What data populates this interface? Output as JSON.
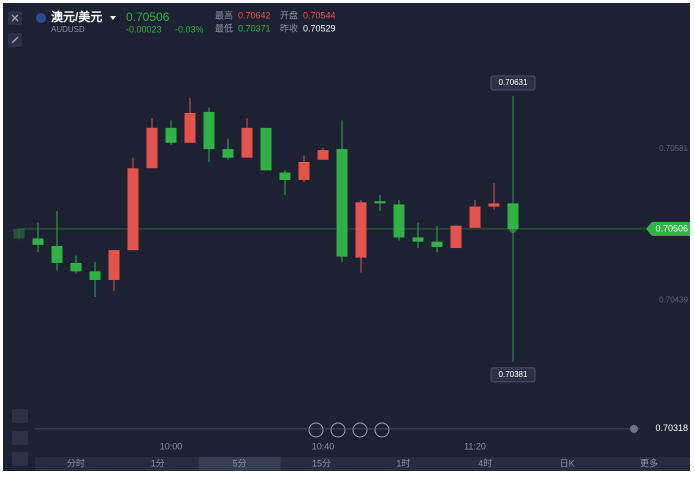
{
  "header": {
    "pair": "澳元/美元",
    "symbol": "AUDUSD",
    "price": "0.70506",
    "change": "-0.00023",
    "change_pct": "-0.03%",
    "stats": [
      {
        "label": "最高",
        "value": "0.70642"
      },
      {
        "label": "开盘",
        "value": "0.70544"
      },
      {
        "label": "最低",
        "value": "0.70371"
      },
      {
        "label": "昨收",
        "value": "0.70529"
      }
    ]
  },
  "chart_data": {
    "type": "candlestick",
    "categories": [
      null,
      null,
      null,
      null,
      null,
      null,
      null,
      null,
      "10:00",
      null,
      null,
      null,
      null,
      null,
      null,
      null,
      "10:40",
      null,
      null,
      null,
      null,
      null,
      null,
      null,
      "11:20",
      null,
      null
    ],
    "open": [
      0.70497,
      0.70491,
      0.70474,
      0.70466,
      0.70458,
      0.70486,
      0.70563,
      0.70601,
      0.70587,
      0.70615,
      0.70581,
      0.70573,
      0.70601,
      0.70561,
      0.70552,
      0.70569,
      0.7058,
      0.7048,
      0.70531,
      0.7053,
      0.70498,
      0.70494,
      0.70489,
      0.70509,
      0.70527,
      0.7053,
      0.70506
    ],
    "high": [
      0.70507,
      0.70512,
      0.70523,
      0.70481,
      0.70475,
      0.70486,
      0.70573,
      0.7061,
      0.70608,
      0.70629,
      0.7062,
      0.70591,
      0.7061,
      0.70601,
      0.70561,
      0.70575,
      0.70582,
      0.70608,
      0.70533,
      0.70538,
      0.70533,
      0.70512,
      0.70509,
      0.70509,
      0.70533,
      0.70549,
      0.7053
    ],
    "low": [
      0.70495,
      0.70484,
      0.70467,
      0.70464,
      0.70442,
      0.70448,
      0.70486,
      0.70563,
      0.70585,
      0.70587,
      0.70569,
      0.70571,
      0.70573,
      0.70561,
      0.70538,
      0.7055,
      0.70571,
      0.70475,
      0.70465,
      0.70523,
      0.70495,
      0.70488,
      0.70484,
      0.70488,
      0.70507,
      0.70524,
      0.70506
    ],
    "close": [
      0.70506,
      0.70497,
      0.7049,
      0.70474,
      0.70466,
      0.70458,
      0.70486,
      0.70563,
      0.70601,
      0.70587,
      0.70616,
      0.70581,
      0.70573,
      0.70601,
      0.70559,
      0.70552,
      0.70571,
      0.70581,
      0.70479,
      0.70532,
      0.70529,
      0.70498,
      0.70494,
      0.70488,
      0.70507,
      0.70527,
      0.7053
    ],
    "up_color": "#2fb344",
    "down_color": "#e5534b",
    "ylim": [
      0.70316,
      0.70693
    ],
    "yticks": [
      0.70581,
      0.70439
    ],
    "last_price": 0.70506,
    "crosshair_high": 0.70631,
    "crosshair_low": 0.70381,
    "alert_price": 0.70318
  },
  "tabs": [
    "分时",
    "1分",
    "5分",
    "15分",
    "1时",
    "4时",
    "日K",
    "更多"
  ],
  "active_tab": "5分"
}
